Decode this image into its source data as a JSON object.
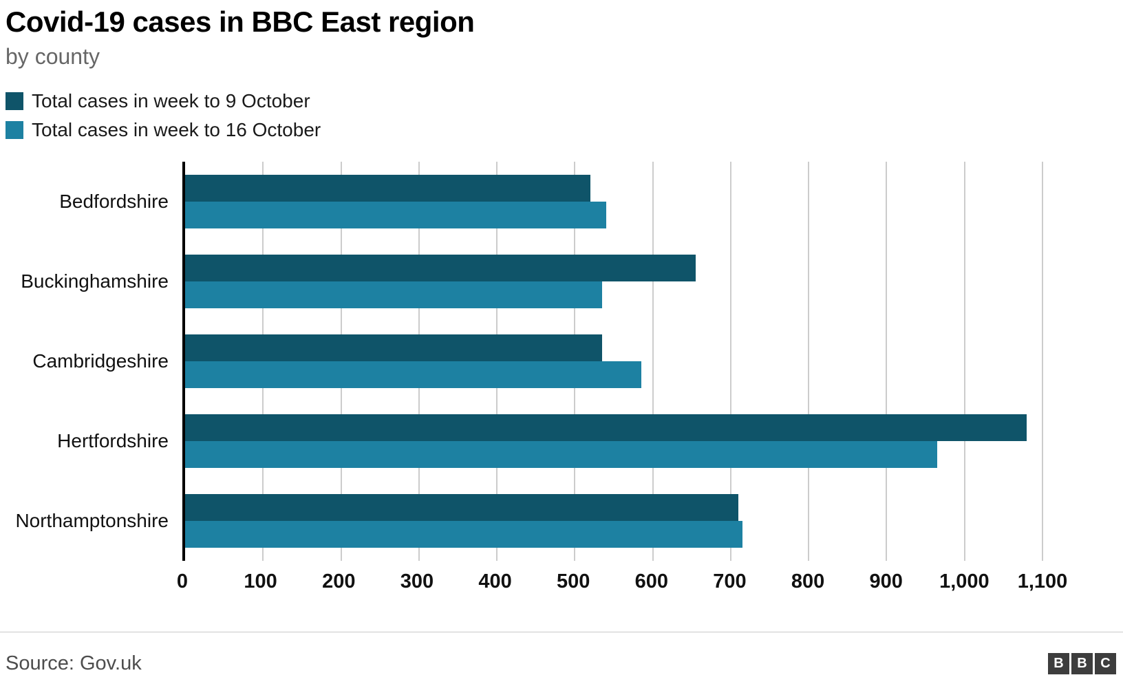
{
  "header": {
    "title": "Covid-19 cases in BBC East region",
    "subtitle": "by county"
  },
  "chart_data": {
    "type": "bar",
    "orientation": "horizontal",
    "title": "Covid-19 cases in BBC East region",
    "subtitle": "by county",
    "categories": [
      "Bedfordshire",
      "Buckinghamshire",
      "Cambridgeshire",
      "Hertfordshire",
      "Northamptonshire"
    ],
    "series": [
      {
        "name": "Total cases in week to 9 October",
        "color": "#0f5469",
        "values": [
          520,
          655,
          535,
          1080,
          710
        ]
      },
      {
        "name": "Total cases in week to 16 October",
        "color": "#1d81a2",
        "values": [
          540,
          535,
          585,
          965,
          715
        ]
      }
    ],
    "xlim": [
      0,
      1100
    ],
    "xticks": [
      0,
      100,
      200,
      300,
      400,
      500,
      600,
      700,
      800,
      900,
      1000,
      1100
    ],
    "xtick_labels": [
      "0",
      "100",
      "200",
      "300",
      "400",
      "500",
      "600",
      "700",
      "800",
      "900",
      "1,000",
      "1,100"
    ],
    "grid": true,
    "gridline_color": "#cccccc",
    "axis_color": "#000000",
    "legend_position": "top-left"
  },
  "footer": {
    "source": "Source: Gov.uk",
    "logo_letters": [
      "B",
      "B",
      "C"
    ]
  }
}
